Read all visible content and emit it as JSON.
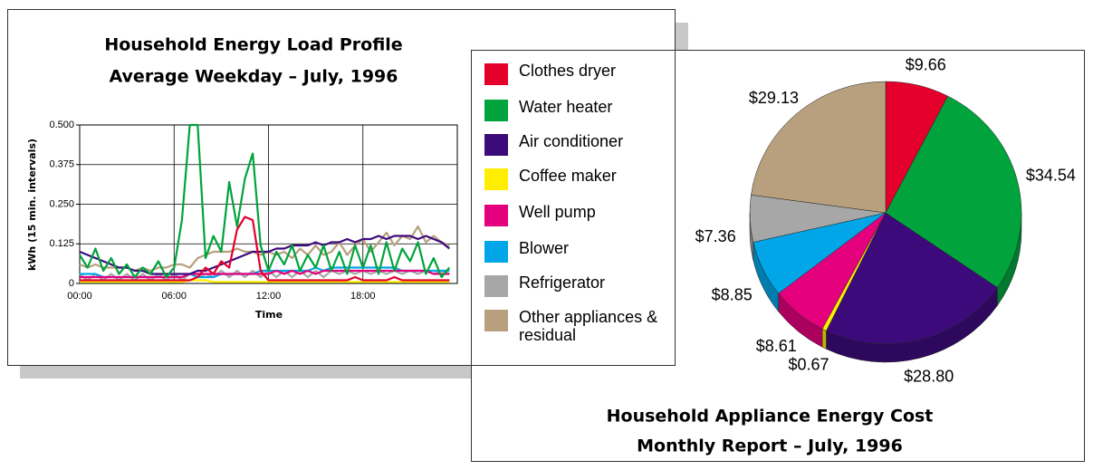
{
  "chart_data": [
    {
      "type": "line",
      "title": "Household Energy Load Profile",
      "subtitle": "Average Weekday – July, 1996",
      "x_label": "Time",
      "y_label": "kWh (15 min. intervals)",
      "x": [
        0,
        0.5,
        1,
        1.5,
        2,
        2.5,
        3,
        3.5,
        4,
        4.5,
        5,
        5.5,
        6,
        6.5,
        7,
        7.5,
        8,
        8.5,
        9,
        9.5,
        10,
        10.5,
        11,
        11.5,
        12,
        12.5,
        13,
        13.5,
        14,
        14.5,
        15,
        15.5,
        16,
        16.5,
        17,
        17.5,
        18,
        18.5,
        19,
        19.5,
        20,
        20.5,
        21,
        21.5,
        22,
        22.5,
        23,
        23.5
      ],
      "xlim": [
        0,
        24
      ],
      "xticks": [
        {
          "value": 0,
          "label": "00:00"
        },
        {
          "value": 6,
          "label": "06:00"
        },
        {
          "value": 12,
          "label": "12:00"
        },
        {
          "value": 18,
          "label": "18:00"
        }
      ],
      "ylim": [
        0,
        0.5
      ],
      "yticks": [
        0,
        0.125,
        {
          "value": 0.25,
          "label": "0.250"
        },
        0.375,
        {
          "value": 0.5,
          "label": "0.500"
        }
      ],
      "grid": true,
      "series": [
        {
          "color": "#e4002b",
          "values": [
            0.01,
            0.01,
            0.01,
            0.01,
            0.01,
            0.01,
            0.01,
            0.01,
            0.01,
            0.01,
            0.01,
            0.01,
            0.01,
            0.01,
            0.01,
            0.02,
            0.05,
            0.03,
            0.07,
            0.05,
            0.17,
            0.21,
            0.2,
            0.04,
            0.01,
            0.01,
            0.01,
            0.01,
            0.01,
            0.01,
            0.01,
            0.01,
            0.01,
            0.01,
            0.01,
            0.02,
            0.01,
            0.01,
            0.01,
            0.01,
            0.02,
            0.01,
            0.01,
            0.01,
            0.01,
            0.01,
            0.01,
            0.01
          ]
        },
        {
          "color": "#00a33c",
          "values": [
            0.09,
            0.05,
            0.11,
            0.04,
            0.08,
            0.03,
            0.06,
            0.02,
            0.05,
            0.03,
            0.07,
            0.02,
            0.05,
            0.2,
            0.5,
            0.5,
            0.08,
            0.15,
            0.1,
            0.32,
            0.18,
            0.33,
            0.41,
            0.12,
            0.04,
            0.1,
            0.06,
            0.12,
            0.04,
            0.09,
            0.05,
            0.12,
            0.04,
            0.1,
            0.03,
            0.12,
            0.05,
            0.12,
            0.03,
            0.13,
            0.04,
            0.11,
            0.07,
            0.13,
            0.03,
            0.08,
            0.02,
            0.05
          ]
        },
        {
          "color": "#3d0a7c",
          "values": [
            0.1,
            0.09,
            0.08,
            0.07,
            0.06,
            0.05,
            0.05,
            0.04,
            0.04,
            0.03,
            0.03,
            0.03,
            0.03,
            0.03,
            0.03,
            0.04,
            0.04,
            0.05,
            0.06,
            0.07,
            0.08,
            0.09,
            0.1,
            0.1,
            0.1,
            0.11,
            0.11,
            0.12,
            0.12,
            0.12,
            0.13,
            0.12,
            0.13,
            0.13,
            0.14,
            0.13,
            0.14,
            0.14,
            0.15,
            0.14,
            0.15,
            0.15,
            0.15,
            0.14,
            0.15,
            0.14,
            0.13,
            0.11
          ]
        },
        {
          "color": "#ffee00",
          "values": [
            0.005,
            0.005,
            0.005,
            0.005,
            0.005,
            0.005,
            0.005,
            0.005,
            0.005,
            0.005,
            0.005,
            0.005,
            0.005,
            0.005,
            0.01,
            0.01,
            0.01,
            0.005,
            0.005,
            0.005,
            0.005,
            0.005,
            0.005,
            0.005,
            0.005,
            0.005,
            0.005,
            0.005,
            0.005,
            0.005,
            0.005,
            0.005,
            0.005,
            0.005,
            0.005,
            0.005,
            0.005,
            0.005,
            0.005,
            0.005,
            0.005,
            0.005,
            0.005,
            0.005,
            0.005,
            0.005,
            0.005,
            0.005
          ]
        },
        {
          "color": "#e5007e",
          "values": [
            0.02,
            0.02,
            0.02,
            0.02,
            0.02,
            0.02,
            0.02,
            0.02,
            0.02,
            0.02,
            0.02,
            0.02,
            0.02,
            0.02,
            0.03,
            0.03,
            0.03,
            0.03,
            0.03,
            0.03,
            0.03,
            0.03,
            0.03,
            0.03,
            0.03,
            0.04,
            0.03,
            0.04,
            0.03,
            0.04,
            0.03,
            0.04,
            0.04,
            0.04,
            0.04,
            0.04,
            0.04,
            0.04,
            0.04,
            0.04,
            0.04,
            0.04,
            0.04,
            0.04,
            0.04,
            0.03,
            0.03,
            0.03
          ]
        },
        {
          "color": "#00a6e8",
          "values": [
            0.03,
            0.03,
            0.03,
            0.02,
            0.02,
            0.02,
            0.02,
            0.02,
            0.02,
            0.02,
            0.02,
            0.02,
            0.02,
            0.02,
            0.03,
            0.02,
            0.02,
            0.02,
            0.03,
            0.03,
            0.03,
            0.03,
            0.03,
            0.04,
            0.04,
            0.04,
            0.04,
            0.04,
            0.04,
            0.04,
            0.05,
            0.04,
            0.05,
            0.05,
            0.05,
            0.05,
            0.05,
            0.05,
            0.05,
            0.05,
            0.05,
            0.04,
            0.04,
            0.04,
            0.04,
            0.04,
            0.04,
            0.04
          ]
        },
        {
          "color": "#a7a7a7",
          "values": [
            0.03,
            0.01,
            0.03,
            0.01,
            0.03,
            0.01,
            0.03,
            0.01,
            0.03,
            0.01,
            0.03,
            0.01,
            0.03,
            0.01,
            0.03,
            0.02,
            0.03,
            0.02,
            0.04,
            0.02,
            0.04,
            0.02,
            0.04,
            0.02,
            0.04,
            0.02,
            0.04,
            0.02,
            0.04,
            0.02,
            0.04,
            0.02,
            0.04,
            0.03,
            0.04,
            0.03,
            0.04,
            0.03,
            0.04,
            0.03,
            0.04,
            0.03,
            0.04,
            0.03,
            0.04,
            0.03,
            0.04,
            0.03
          ]
        },
        {
          "color": "#b8a07f",
          "values": [
            0.06,
            0.05,
            0.06,
            0.05,
            0.05,
            0.05,
            0.05,
            0.04,
            0.05,
            0.04,
            0.05,
            0.05,
            0.06,
            0.06,
            0.05,
            0.08,
            0.09,
            0.1,
            0.1,
            0.1,
            0.11,
            0.1,
            0.1,
            0.09,
            0.1,
            0.09,
            0.1,
            0.08,
            0.11,
            0.09,
            0.12,
            0.09,
            0.1,
            0.13,
            0.09,
            0.12,
            0.14,
            0.1,
            0.13,
            0.16,
            0.12,
            0.15,
            0.14,
            0.18,
            0.13,
            0.15,
            0.13,
            0.12
          ]
        }
      ]
    },
    {
      "type": "pie",
      "title": "Household Appliance Energy Cost",
      "subtitle": "Monthly Report – July, 1996",
      "categories": [
        "Clothes dryer",
        "Water heater",
        "Air conditioner",
        "Coffee maker",
        "Well pump",
        "Blower",
        "Refrigerator",
        "Other appliances & residual"
      ],
      "values": [
        9.66,
        34.54,
        28.8,
        0.67,
        8.61,
        8.85,
        7.36,
        29.13
      ],
      "value_labels": [
        "$9.66",
        "$34.54",
        "$28.80",
        "$0.67",
        "$8.61",
        "$8.85",
        "$7.36",
        "$29.13"
      ],
      "colors": [
        "#e4002b",
        "#00a33c",
        "#3d0a7c",
        "#ffee00",
        "#e5007e",
        "#00a6e8",
        "#a7a7a7",
        "#b8a07f"
      ]
    }
  ]
}
